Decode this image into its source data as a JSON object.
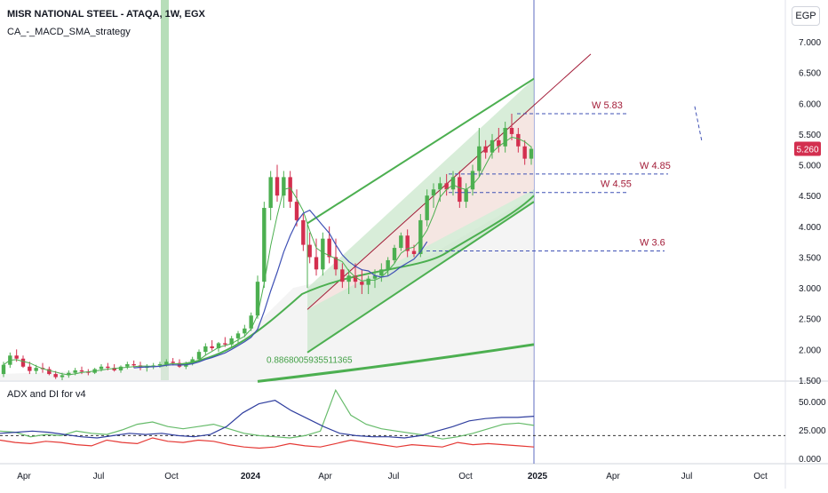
{
  "header": {
    "symbol_title": "MISR NATIONAL STEEL - ATAQA, 1W, EGX",
    "strategy_name": "CA_-_MACD_SMA_strategy",
    "currency": "EGP",
    "adx_title": "ADX and DI for v4"
  },
  "annotations": {
    "w583": "W  5.83",
    "w485": "W 4.85",
    "w455": "W 4.55",
    "w36": "W 3.6",
    "channel_value": "0.8868005935511365"
  },
  "price_badge": "5.260",
  "colors": {
    "up": "#4caf50",
    "down": "#d32f4f",
    "channel_fill": "#c8e6c9",
    "channel_line": "#4caf50",
    "red_channel_fill": "#fce4e4",
    "trend_line": "#a31c38",
    "blue_line": "#3f51b5",
    "green_ma": "#4caf50",
    "level_line": "#3f51b5",
    "adx_red": "#e53935",
    "adx_green": "#66bb6a",
    "adx_blue": "#303f9f",
    "highlight_bar": "#a5d6a7",
    "vline": "#5c6bc0"
  },
  "chart_data": [
    {
      "type": "candlestick",
      "title": "MISR NATIONAL STEEL - ATAQA, 1W, EGX",
      "yaxis_ticks": [
        "1.500",
        "2.000",
        "2.500",
        "3.000",
        "3.500",
        "4.000",
        "4.500",
        "5.000",
        "5.500",
        "6.000",
        "6.500",
        "7.000"
      ],
      "ylim": [
        1.5,
        7.3
      ],
      "xaxis_ticks": [
        "Apr",
        "Jul",
        "Oct",
        "2024",
        "Apr",
        "Jul",
        "Oct",
        "2025",
        "Apr",
        "Jul",
        "Oct"
      ],
      "last_price": 5.26,
      "candles": [
        [
          1.6,
          1.8,
          1.55,
          1.75
        ],
        [
          1.75,
          1.95,
          1.7,
          1.9
        ],
        [
          1.9,
          2.0,
          1.8,
          1.85
        ],
        [
          1.85,
          1.9,
          1.7,
          1.72
        ],
        [
          1.72,
          1.8,
          1.6,
          1.65
        ],
        [
          1.65,
          1.75,
          1.6,
          1.7
        ],
        [
          1.7,
          1.78,
          1.62,
          1.68
        ],
        [
          1.68,
          1.72,
          1.58,
          1.6
        ],
        [
          1.6,
          1.65,
          1.52,
          1.55
        ],
        [
          1.55,
          1.62,
          1.5,
          1.58
        ],
        [
          1.58,
          1.66,
          1.54,
          1.62
        ],
        [
          1.62,
          1.7,
          1.58,
          1.66
        ],
        [
          1.66,
          1.72,
          1.6,
          1.64
        ],
        [
          1.64,
          1.68,
          1.58,
          1.62
        ],
        [
          1.62,
          1.7,
          1.6,
          1.68
        ],
        [
          1.68,
          1.76,
          1.64,
          1.72
        ],
        [
          1.72,
          1.78,
          1.66,
          1.7
        ],
        [
          1.7,
          1.76,
          1.64,
          1.66
        ],
        [
          1.66,
          1.74,
          1.62,
          1.72
        ],
        [
          1.72,
          1.8,
          1.68,
          1.76
        ],
        [
          1.76,
          1.82,
          1.7,
          1.74
        ],
        [
          1.74,
          1.8,
          1.66,
          1.7
        ],
        [
          1.7,
          1.76,
          1.64,
          1.72
        ],
        [
          1.72,
          1.78,
          1.68,
          1.74
        ],
        [
          1.74,
          1.8,
          1.7,
          1.76
        ],
        [
          1.76,
          1.84,
          1.72,
          1.8
        ],
        [
          1.8,
          1.86,
          1.74,
          1.78
        ],
        [
          1.78,
          1.84,
          1.7,
          1.72
        ],
        [
          1.72,
          1.8,
          1.68,
          1.78
        ],
        [
          1.78,
          1.88,
          1.74,
          1.84
        ],
        [
          1.84,
          2.0,
          1.8,
          1.96
        ],
        [
          1.96,
          2.1,
          1.9,
          2.05
        ],
        [
          2.05,
          2.15,
          1.98,
          2.02
        ],
        [
          2.02,
          2.12,
          1.96,
          2.1
        ],
        [
          2.1,
          2.2,
          2.04,
          2.08
        ],
        [
          2.08,
          2.22,
          2.02,
          2.18
        ],
        [
          2.18,
          2.3,
          2.1,
          2.26
        ],
        [
          2.26,
          2.4,
          2.2,
          2.34
        ],
        [
          2.34,
          2.6,
          2.3,
          2.55
        ],
        [
          2.55,
          3.2,
          2.5,
          3.1
        ],
        [
          3.1,
          4.4,
          3.0,
          4.3
        ],
        [
          4.3,
          4.9,
          4.1,
          4.8
        ],
        [
          4.8,
          5.0,
          4.4,
          4.5
        ],
        [
          4.5,
          4.9,
          4.3,
          4.8
        ],
        [
          4.8,
          4.9,
          4.3,
          4.4
        ],
        [
          4.4,
          4.6,
          4.0,
          4.1
        ],
        [
          4.1,
          4.2,
          3.6,
          3.7
        ],
        [
          3.7,
          3.9,
          3.4,
          3.5
        ],
        [
          3.5,
          3.8,
          3.2,
          3.3
        ],
        [
          3.3,
          3.9,
          3.2,
          3.8
        ],
        [
          3.8,
          4.0,
          3.4,
          3.5
        ],
        [
          3.5,
          3.8,
          3.2,
          3.3
        ],
        [
          3.3,
          3.4,
          3.0,
          3.1
        ],
        [
          3.1,
          3.3,
          2.9,
          3.2
        ],
        [
          3.2,
          3.4,
          3.0,
          3.1
        ],
        [
          3.1,
          3.3,
          2.9,
          3.05
        ],
        [
          3.05,
          3.2,
          2.9,
          3.15
        ],
        [
          3.15,
          3.3,
          3.0,
          3.2
        ],
        [
          3.2,
          3.4,
          3.1,
          3.3
        ],
        [
          3.3,
          3.5,
          3.2,
          3.45
        ],
        [
          3.45,
          3.7,
          3.4,
          3.65
        ],
        [
          3.65,
          3.9,
          3.6,
          3.85
        ],
        [
          3.85,
          3.95,
          3.5,
          3.6
        ],
        [
          3.6,
          3.7,
          3.5,
          3.55
        ],
        [
          3.55,
          4.2,
          3.5,
          4.1
        ],
        [
          4.1,
          4.6,
          4.0,
          4.5
        ],
        [
          4.5,
          4.7,
          4.3,
          4.6
        ],
        [
          4.6,
          4.8,
          4.4,
          4.7
        ],
        [
          4.7,
          4.85,
          4.5,
          4.6
        ],
        [
          4.6,
          4.9,
          4.5,
          4.8
        ],
        [
          4.8,
          4.9,
          4.3,
          4.4
        ],
        [
          4.4,
          4.7,
          4.3,
          4.6
        ],
        [
          4.6,
          5.0,
          4.5,
          4.9
        ],
        [
          4.9,
          5.6,
          4.8,
          5.3
        ],
        [
          5.3,
          5.4,
          5.1,
          5.2
        ],
        [
          5.2,
          5.5,
          5.1,
          5.4
        ],
        [
          5.4,
          5.6,
          5.2,
          5.3
        ],
        [
          5.3,
          5.7,
          5.2,
          5.6
        ],
        [
          5.6,
          5.83,
          5.4,
          5.5
        ],
        [
          5.5,
          5.6,
          5.2,
          5.3
        ],
        [
          5.3,
          5.4,
          5.0,
          5.1
        ],
        [
          5.1,
          5.3,
          5.0,
          5.26
        ]
      ]
    },
    {
      "type": "line",
      "title": "ADX and DI for v4",
      "yaxis_ticks": [
        "0.000",
        "25.000",
        "50.000"
      ],
      "ylim": [
        0,
        60
      ]
    }
  ]
}
